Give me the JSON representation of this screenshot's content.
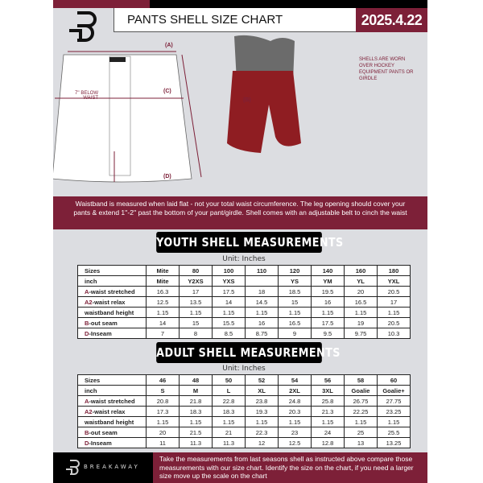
{
  "header": {
    "title": "PANTS SHELL SIZE CHART",
    "date": "2025.4.22"
  },
  "diagram": {
    "label_a": "(A)",
    "label_b": "(B)",
    "label_c": "(C)",
    "label_d": "(D)",
    "below_waist": "7'' BELOW WAIST",
    "note": "SHELLS ARE WORN OVER HOCKEY EQUIPMENT PANTS OR GIRDLE"
  },
  "info": "Waistband is measured when laid flat - not your total waist circumference. The leg opening should cover your pants & extend 1''-2'' past the bottom of your pant/girdle. Shell comes with an adjustable belt to cinch the waist",
  "youth": {
    "title": "YOUTH SHELL MEASUREMENTS",
    "unit": "Unit: Inches",
    "rows": [
      {
        "key": "",
        "label": "Sizes",
        "values": [
          "Mite",
          "80",
          "100",
          "110",
          "120",
          "140",
          "160",
          "180"
        ]
      },
      {
        "key": "",
        "label": "inch",
        "values": [
          "Mite",
          "Y2XS",
          "YXS",
          "",
          "YS",
          "YM",
          "YL",
          "YXL"
        ]
      },
      {
        "key": "A",
        "label": "-waist stretched",
        "values": [
          "16.3",
          "17",
          "17.5",
          "18",
          "18.5",
          "19.5",
          "20",
          "20.5"
        ]
      },
      {
        "key": "A2",
        "label": "-waist relax",
        "values": [
          "12.5",
          "13.5",
          "14",
          "14.5",
          "15",
          "16",
          "16.5",
          "17"
        ]
      },
      {
        "key": "",
        "label": "waistband height",
        "values": [
          "1.15",
          "1.15",
          "1.15",
          "1.15",
          "1.15",
          "1.15",
          "1.15",
          "1.15"
        ]
      },
      {
        "key": "B",
        "label": "-out seam",
        "values": [
          "14",
          "15",
          "15.5",
          "16",
          "16.5",
          "17.5",
          "19",
          "20.5"
        ]
      },
      {
        "key": "D",
        "label": "-Inseam",
        "values": [
          "7",
          "8",
          "8.5",
          "8.75",
          "9",
          "9.5",
          "9.75",
          "10.3"
        ]
      }
    ]
  },
  "adult": {
    "title": "ADULT SHELL MEASUREMENTS",
    "unit": "Unit: Inches",
    "rows": [
      {
        "key": "",
        "label": "Sizes",
        "values": [
          "46",
          "48",
          "50",
          "52",
          "54",
          "56",
          "58",
          "60"
        ]
      },
      {
        "key": "",
        "label": "inch",
        "values": [
          "S",
          "M",
          "L",
          "XL",
          "2XL",
          "3XL",
          "Goalie",
          "Goalie+"
        ]
      },
      {
        "key": "A",
        "label": "-waist stretched",
        "values": [
          "20.8",
          "21.8",
          "22.8",
          "23.8",
          "24.8",
          "25.8",
          "26.75",
          "27.75"
        ]
      },
      {
        "key": "A2",
        "label": "-waist relax",
        "values": [
          "17.3",
          "18.3",
          "18.3",
          "19.3",
          "20.3",
          "21.3",
          "22.25",
          "23.25"
        ]
      },
      {
        "key": "",
        "label": "waistband height",
        "values": [
          "1.15",
          "1.15",
          "1.15",
          "1.15",
          "1.15",
          "1.15",
          "1.15",
          "1.15"
        ]
      },
      {
        "key": "B",
        "label": "-out seam",
        "values": [
          "20",
          "21.5",
          "21",
          "22.3",
          "23",
          "24",
          "25",
          "25.5"
        ]
      },
      {
        "key": "D",
        "label": "-Inseam",
        "values": [
          "11",
          "11.3",
          "11.3",
          "12",
          "12.5",
          "12.8",
          "13",
          "13.25"
        ]
      }
    ]
  },
  "footer": {
    "brand": "BREAKAWAY",
    "text": "Take the measurements from last seasons shell as instructed above compare those measurements  with our size chart. Identify the size on the chart, if you need a larger size move up the scale on the chart"
  },
  "colors": {
    "accent": "#7d2038",
    "background": "#dcdde1"
  }
}
